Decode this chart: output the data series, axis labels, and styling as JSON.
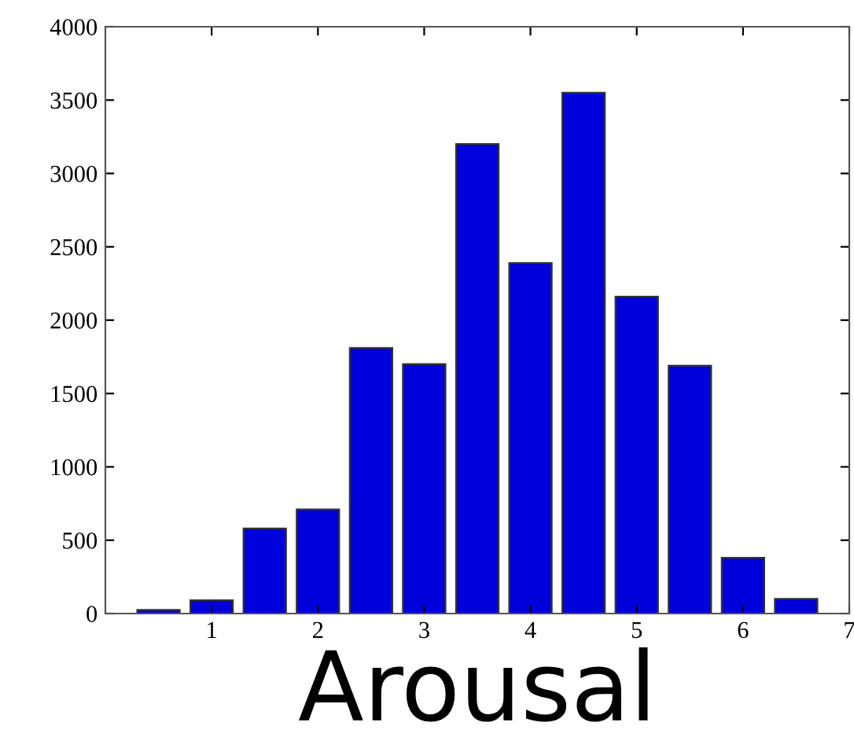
{
  "chart_data": {
    "type": "bar",
    "xlabel": "Arousal",
    "x": [
      0.5,
      1,
      1.5,
      2,
      2.5,
      3,
      3.5,
      4,
      4.5,
      5,
      5.5,
      6,
      6.5
    ],
    "values": [
      25,
      90,
      580,
      710,
      1810,
      1700,
      3200,
      2390,
      3550,
      2160,
      1690,
      380,
      100
    ],
    "color": "#0000dd",
    "xlim": [
      0,
      7
    ],
    "xticks": [
      1,
      2,
      3,
      4,
      5,
      6,
      7
    ],
    "ylim": [
      0,
      4000
    ],
    "yticks": [
      0,
      500,
      1000,
      1500,
      2000,
      2500,
      3000,
      3500,
      4000
    ],
    "grid": false
  }
}
